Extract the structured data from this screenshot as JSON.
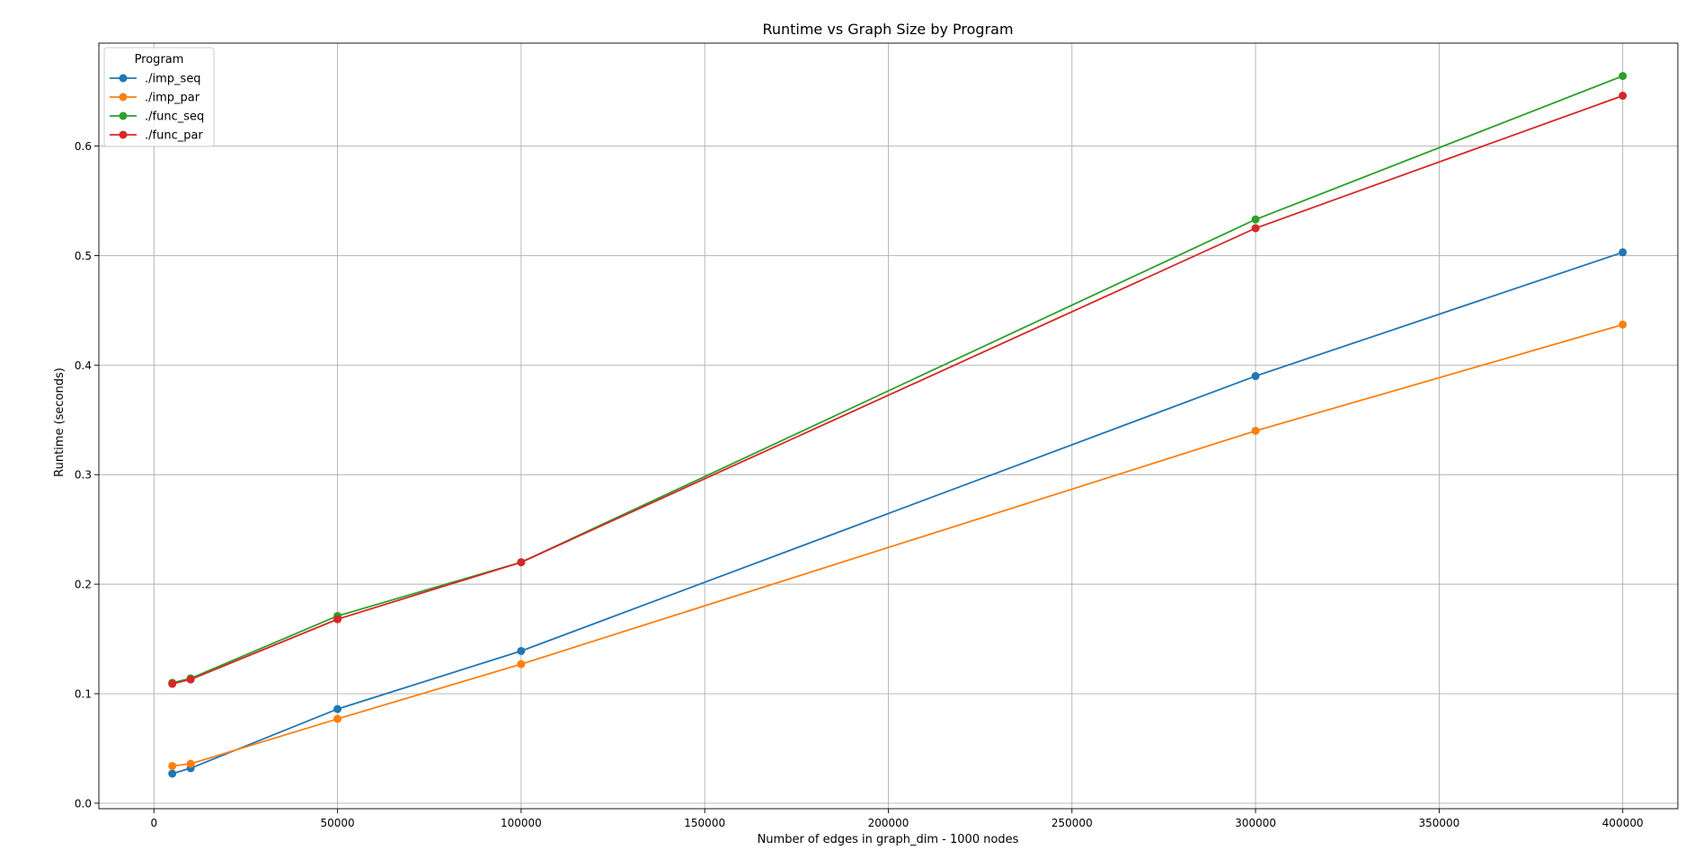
{
  "chart_data": {
    "type": "line",
    "title": "Runtime vs Graph Size by Program",
    "xlabel": "Number of edges in graph_dim - 1000 nodes",
    "ylabel": "Runtime (seconds)",
    "xlim": [
      -15000,
      415000
    ],
    "ylim": [
      -0.005,
      0.694
    ],
    "xticks": [
      0,
      50000,
      100000,
      150000,
      200000,
      250000,
      300000,
      350000,
      400000
    ],
    "xtick_labels": [
      "0",
      "50000",
      "100000",
      "150000",
      "200000",
      "250000",
      "300000",
      "350000",
      "400000"
    ],
    "yticks": [
      0.0,
      0.1,
      0.2,
      0.3,
      0.4,
      0.5,
      0.6
    ],
    "ytick_labels": [
      "0.0",
      "0.1",
      "0.2",
      "0.3",
      "0.4",
      "0.5",
      "0.6"
    ],
    "grid": true,
    "legend": {
      "title": "Program",
      "placement": "top-left"
    },
    "x": [
      5000,
      10000,
      50000,
      100000,
      300000,
      400000
    ],
    "series": [
      {
        "name": "./imp_seq",
        "color": "#1f77b4",
        "values": [
          0.027,
          0.032,
          0.086,
          0.139,
          0.39,
          0.503
        ]
      },
      {
        "name": "./imp_par",
        "color": "#ff7f0e",
        "values": [
          0.034,
          0.036,
          0.077,
          0.127,
          0.34,
          0.437
        ]
      },
      {
        "name": "./func_seq",
        "color": "#2ca02c",
        "values": [
          0.11,
          0.114,
          0.171,
          0.22,
          0.533,
          0.664
        ]
      },
      {
        "name": "./func_par",
        "color": "#d62728",
        "values": [
          0.109,
          0.113,
          0.168,
          0.22,
          0.525,
          0.646
        ]
      }
    ]
  }
}
